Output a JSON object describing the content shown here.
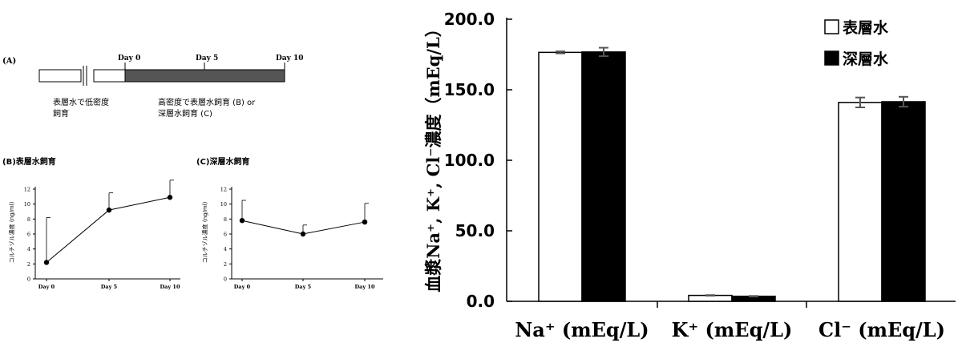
{
  "panel_a": {
    "label": "(A)",
    "day_labels": [
      "Day 0",
      "Day 5",
      "Day 10"
    ],
    "caption_left_1": "表層水で低密度",
    "caption_left_2": "飼育",
    "caption_right_1": "高密度で表層水飼育 (B) or",
    "caption_right_2": "深層水飼育 (C)"
  },
  "colors": {
    "bar_surface": "#ffffff",
    "bar_deep": "#000000",
    "error_bar": "#555555",
    "timeline_fill": "#555555"
  },
  "chart_data": [
    {
      "type": "line",
      "title": "(B)表層水飼育",
      "xlabel": "",
      "ylabel": "コルチゾル濃度 (ng/ml)",
      "categories": [
        "Day 0",
        "Day 5",
        "Day 10"
      ],
      "values": [
        2.2,
        9.2,
        10.9
      ],
      "error": [
        6.0,
        2.3,
        2.3
      ],
      "ylim": [
        0,
        12
      ],
      "yticks": [
        "0",
        "2",
        "4",
        "6",
        "8",
        "10",
        "12"
      ]
    },
    {
      "type": "line",
      "title": "(C)深層水飼育",
      "xlabel": "",
      "ylabel": "コルチゾル濃度 (ng/ml)",
      "categories": [
        "Day 0",
        "Day 5",
        "Day 10"
      ],
      "values": [
        7.8,
        6.0,
        7.6
      ],
      "error": [
        2.7,
        1.2,
        2.5
      ],
      "ylim": [
        0,
        12
      ],
      "yticks": [
        "0",
        "2",
        "4",
        "6",
        "8",
        "10",
        "12"
      ]
    },
    {
      "type": "bar",
      "title": "",
      "ylabel": "血漿Na⁺, K⁺, Cl⁻濃度（mEq/L）",
      "categories": [
        "Na⁺ (mEq/L)",
        "K⁺ (mEq/L)",
        "Cl⁻ (mEq/L)"
      ],
      "series": [
        {
          "name": "表層水",
          "values": [
            176.5,
            4.2,
            141.0
          ],
          "error": [
            0.7,
            0.2,
            3.5
          ]
        },
        {
          "name": "深層水",
          "values": [
            176.8,
            3.6,
            141.5
          ],
          "error": [
            3.0,
            0.2,
            3.5
          ]
        }
      ],
      "ylim": [
        0,
        200
      ],
      "yticks": [
        "0.0",
        "50.0",
        "100.0",
        "150.0",
        "200.0"
      ],
      "legend": "top-right"
    }
  ]
}
